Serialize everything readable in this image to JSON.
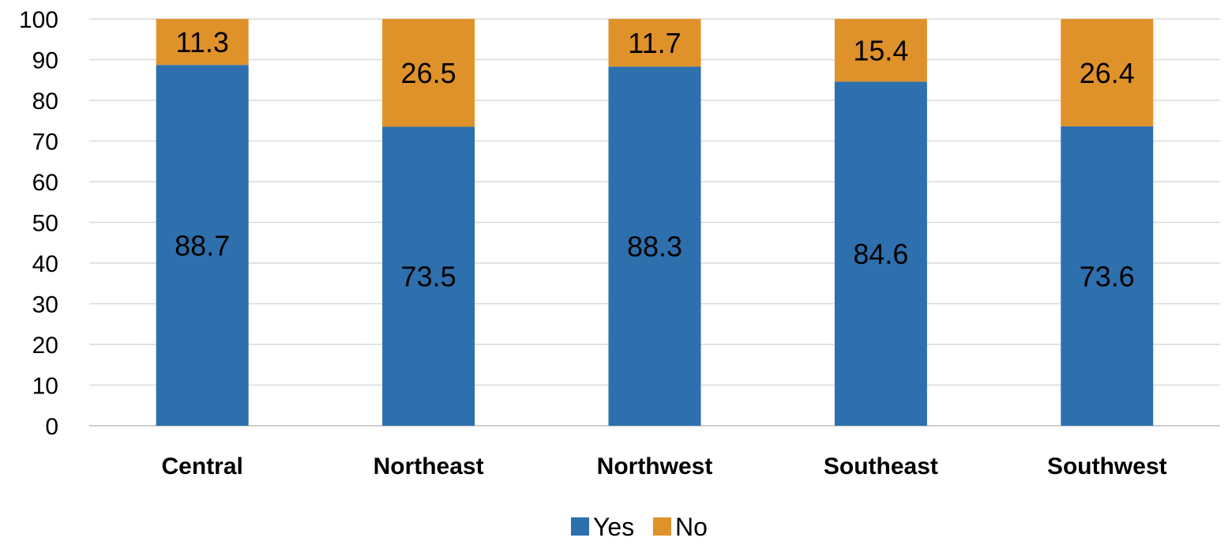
{
  "chart_data": {
    "type": "bar",
    "stacked": true,
    "categories": [
      "Central",
      "Northeast",
      "Northwest",
      "Southeast",
      "Southwest"
    ],
    "series": [
      {
        "name": "Yes",
        "values": [
          88.7,
          73.5,
          88.3,
          84.6,
          73.6
        ],
        "color": "#2e6fad"
      },
      {
        "name": "No",
        "values": [
          11.3,
          26.5,
          11.7,
          15.4,
          26.4
        ],
        "color": "#df922a"
      }
    ],
    "data_labels": {
      "Yes": [
        "88.7",
        "73.5",
        "88.3",
        "84.6",
        "73.6"
      ],
      "No": [
        "11.3",
        "26.5",
        "11.7",
        "15.4",
        "26.4"
      ]
    },
    "yticks": [
      "0",
      "10",
      "20",
      "30",
      "40",
      "50",
      "60",
      "70",
      "80",
      "90",
      "100"
    ],
    "ylim": [
      0,
      100
    ],
    "grid": true,
    "legend_placement": "bottom",
    "title": "",
    "xlabel": "",
    "ylabel": ""
  }
}
